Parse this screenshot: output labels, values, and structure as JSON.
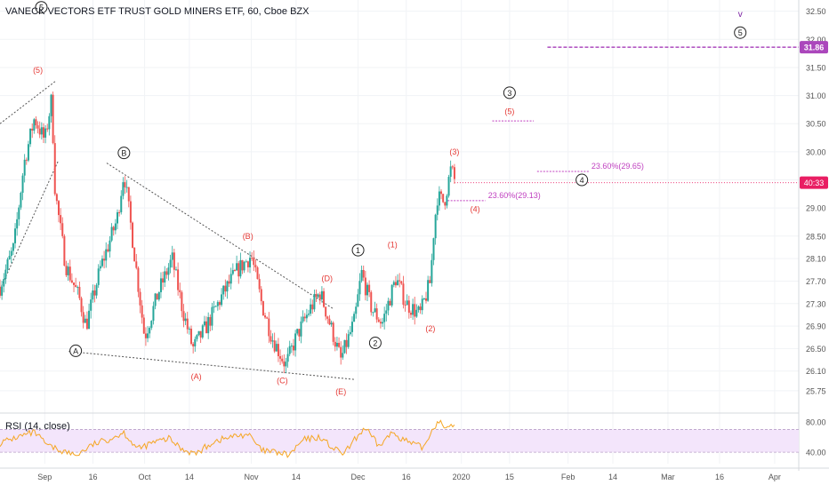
{
  "header": {
    "symbol_title": "VANECK VECTORS ETF TRUST GOLD MINERS ETF, 60, Cboe BZX",
    "rsi_title": "RSI (14, close)"
  },
  "colors": {
    "up_candle": "#26a69a",
    "down_candle": "#ef5350",
    "wave_label_red": "#e53935",
    "fib_magenta": "#c040c0",
    "purple_line": "#9c27b0",
    "price_badge": "#e91e63",
    "last_badge": "#ab47bc",
    "rsi_line": "#f5a623",
    "rsi_band": "#f3e5fb",
    "axis_text": "#555555",
    "grid": "#f1f3f6"
  },
  "chart_data": [
    {
      "type": "candlestick",
      "title": "VANECK VECTORS ETF TRUST GOLD MINERS ETF, 60, Cboe BZX",
      "y_axis_side": "right",
      "ylim": [
        25.4,
        32.7
      ],
      "yticks": [
        25.75,
        26.1,
        26.5,
        26.9,
        27.3,
        27.7,
        28.1,
        28.5,
        29.0,
        29.5,
        30.0,
        30.5,
        31.0,
        31.5,
        32.0,
        32.5
      ],
      "ytick_labels": [
        "25.75",
        "26.10",
        "26.50",
        "26.90",
        "27.30",
        "27.70",
        "28.10",
        "28.50",
        "29.00",
        "29.50",
        "30.00",
        "30.50",
        "31.00",
        "31.50",
        "32.00",
        "32.50"
      ],
      "x_date_range": [
        "2019-08-20",
        "2020-04-08"
      ],
      "x_ticks": [
        {
          "date": "2019-09-02",
          "label": "Sep"
        },
        {
          "date": "2019-09-16",
          "label": "16"
        },
        {
          "date": "2019-10-01",
          "label": "Oct"
        },
        {
          "date": "2019-10-14",
          "label": "14"
        },
        {
          "date": "2019-11-01",
          "label": "Nov"
        },
        {
          "date": "2019-11-14",
          "label": "14"
        },
        {
          "date": "2019-12-02",
          "label": "Dec"
        },
        {
          "date": "2019-12-16",
          "label": "16"
        },
        {
          "date": "2020-01-01",
          "label": "2020"
        },
        {
          "date": "2020-01-15",
          "label": "15"
        },
        {
          "date": "2020-02-01",
          "label": "Feb"
        },
        {
          "date": "2020-02-14",
          "label": "14"
        },
        {
          "date": "2020-03-01",
          "label": "Mar"
        },
        {
          "date": "2020-03-16",
          "label": "16"
        },
        {
          "date": "2020-04-01",
          "label": "Apr"
        }
      ],
      "price_path": [
        {
          "date": "2019-08-20",
          "price": 27.6
        },
        {
          "date": "2019-08-24",
          "price": 28.3
        },
        {
          "date": "2019-08-27",
          "price": 29.8
        },
        {
          "date": "2019-08-30",
          "price": 30.6
        },
        {
          "date": "2019-09-02",
          "price": 30.2
        },
        {
          "date": "2019-09-04",
          "price": 30.95
        },
        {
          "date": "2019-09-05",
          "price": 29.3
        },
        {
          "date": "2019-09-08",
          "price": 28.0
        },
        {
          "date": "2019-09-12",
          "price": 27.4
        },
        {
          "date": "2019-09-14",
          "price": 26.9
        },
        {
          "date": "2019-09-18",
          "price": 27.9
        },
        {
          "date": "2019-09-23",
          "price": 28.8
        },
        {
          "date": "2019-09-25",
          "price": 29.65
        },
        {
          "date": "2019-09-28",
          "price": 28.2
        },
        {
          "date": "2019-10-01",
          "price": 26.7
        },
        {
          "date": "2019-10-05",
          "price": 27.5
        },
        {
          "date": "2019-10-09",
          "price": 28.1
        },
        {
          "date": "2019-10-12",
          "price": 27.2
        },
        {
          "date": "2019-10-15",
          "price": 26.5
        },
        {
          "date": "2019-10-19",
          "price": 26.9
        },
        {
          "date": "2019-10-24",
          "price": 27.5
        },
        {
          "date": "2019-10-28",
          "price": 27.9
        },
        {
          "date": "2019-11-01",
          "price": 28.15
        },
        {
          "date": "2019-11-04",
          "price": 27.3
        },
        {
          "date": "2019-11-07",
          "price": 26.7
        },
        {
          "date": "2019-11-11",
          "price": 26.2
        },
        {
          "date": "2019-11-14",
          "price": 26.7
        },
        {
          "date": "2019-11-18",
          "price": 27.2
        },
        {
          "date": "2019-11-21",
          "price": 27.5
        },
        {
          "date": "2019-11-24",
          "price": 26.9
        },
        {
          "date": "2019-11-27",
          "price": 26.3
        },
        {
          "date": "2019-12-01",
          "price": 27.0
        },
        {
          "date": "2019-12-03",
          "price": 27.85
        },
        {
          "date": "2019-12-06",
          "price": 27.2
        },
        {
          "date": "2019-12-09",
          "price": 26.95
        },
        {
          "date": "2019-12-13",
          "price": 27.75
        },
        {
          "date": "2019-12-16",
          "price": 27.3
        },
        {
          "date": "2019-12-20",
          "price": 27.1
        },
        {
          "date": "2019-12-23",
          "price": 27.7
        },
        {
          "date": "2019-12-24",
          "price": 28.6
        },
        {
          "date": "2019-12-25",
          "price": 29.2
        },
        {
          "date": "2019-12-27",
          "price": 29.1
        },
        {
          "date": "2019-12-29",
          "price": 29.7
        },
        {
          "date": "2019-12-30",
          "price": 29.5
        }
      ],
      "last_price": {
        "value": 29.45,
        "countdown_label": "40:33"
      },
      "level_line": {
        "value": 31.86,
        "label": "31.86",
        "from_date": "2020-01-26"
      },
      "fib_levels": [
        {
          "label": "23.60%(29.13)",
          "value": 29.13,
          "from": "2019-12-28",
          "to": "2020-01-08"
        },
        {
          "label": "23.60%(29.65)",
          "value": 29.65,
          "from": "2020-01-23",
          "to": "2020-02-07"
        },
        {
          "label": "",
          "value": 30.55,
          "from": "2020-01-10",
          "to": "2020-01-22"
        }
      ],
      "trendlines": [
        {
          "from": {
            "date": "2019-08-20",
            "price": 30.5
          },
          "to": {
            "date": "2019-09-05",
            "price": 31.25
          }
        },
        {
          "from": {
            "date": "2019-08-20",
            "price": 27.55
          },
          "to": {
            "date": "2019-09-06",
            "price": 29.85
          }
        },
        {
          "from": {
            "date": "2019-09-20",
            "price": 29.8
          },
          "to": {
            "date": "2019-11-25",
            "price": 27.2
          }
        },
        {
          "from": {
            "date": "2019-09-09",
            "price": 26.45
          },
          "to": {
            "date": "2019-12-01",
            "price": 25.95
          }
        }
      ],
      "wave_labels": [
        {
          "text": "(5)",
          "date": "2019-08-31",
          "price": 31.45,
          "style": "red"
        },
        {
          "text": "5",
          "date": "2019-09-01",
          "price": 32.57,
          "style": "circle"
        },
        {
          "text": "B",
          "date": "2019-09-25",
          "price": 29.98,
          "style": "circle"
        },
        {
          "text": "A",
          "date": "2019-09-11",
          "price": 26.46,
          "style": "circle"
        },
        {
          "text": "(A)",
          "date": "2019-10-16",
          "price": 26.0,
          "style": "red"
        },
        {
          "text": "(B)",
          "date": "2019-10-31",
          "price": 28.5,
          "style": "red"
        },
        {
          "text": "(C)",
          "date": "2019-11-10",
          "price": 25.93,
          "style": "red"
        },
        {
          "text": "(D)",
          "date": "2019-11-23",
          "price": 27.75,
          "style": "red"
        },
        {
          "text": "(E)",
          "date": "2019-11-27",
          "price": 25.73,
          "style": "red"
        },
        {
          "text": "1",
          "date": "2019-12-02",
          "price": 28.25,
          "style": "circle"
        },
        {
          "text": "(1)",
          "date": "2019-12-12",
          "price": 28.35,
          "style": "red"
        },
        {
          "text": "2",
          "date": "2019-12-07",
          "price": 26.6,
          "style": "circle"
        },
        {
          "text": "(2)",
          "date": "2019-12-23",
          "price": 26.85,
          "style": "red"
        },
        {
          "text": "(3)",
          "date": "2019-12-30",
          "price": 30.0,
          "style": "red"
        },
        {
          "text": "(4)",
          "date": "2020-01-05",
          "price": 28.98,
          "style": "red"
        },
        {
          "text": "3",
          "date": "2020-01-15",
          "price": 31.05,
          "style": "circle"
        },
        {
          "text": "(5)",
          "date": "2020-01-15",
          "price": 30.72,
          "style": "red"
        },
        {
          "text": "4",
          "date": "2020-02-05",
          "price": 29.5,
          "style": "circle"
        },
        {
          "text": "5",
          "date": "2020-03-22",
          "price": 32.12,
          "style": "circle"
        },
        {
          "text": "v",
          "date": "2020-03-22",
          "price": 32.45,
          "style": "purple"
        }
      ]
    },
    {
      "type": "line",
      "title": "RSI (14, close)",
      "ylim": [
        25,
        88
      ],
      "yticks": [
        40.0,
        80.0
      ],
      "ytick_labels": [
        "40.00",
        "80.00"
      ],
      "band": [
        40,
        70
      ],
      "series": [
        {
          "name": "RSI (14, close)",
          "points": [
            {
              "date": "2019-08-20",
              "value": 52
            },
            {
              "date": "2019-08-25",
              "value": 60
            },
            {
              "date": "2019-08-30",
              "value": 66
            },
            {
              "date": "2019-09-03",
              "value": 48
            },
            {
              "date": "2019-09-07",
              "value": 42
            },
            {
              "date": "2019-09-11",
              "value": 36
            },
            {
              "date": "2019-09-16",
              "value": 50
            },
            {
              "date": "2019-09-21",
              "value": 58
            },
            {
              "date": "2019-09-25",
              "value": 66
            },
            {
              "date": "2019-09-29",
              "value": 44
            },
            {
              "date": "2019-10-03",
              "value": 52
            },
            {
              "date": "2019-10-08",
              "value": 58
            },
            {
              "date": "2019-10-12",
              "value": 44
            },
            {
              "date": "2019-10-16",
              "value": 38
            },
            {
              "date": "2019-10-21",
              "value": 54
            },
            {
              "date": "2019-10-26",
              "value": 60
            },
            {
              "date": "2019-10-31",
              "value": 64
            },
            {
              "date": "2019-11-04",
              "value": 42
            },
            {
              "date": "2019-11-08",
              "value": 40
            },
            {
              "date": "2019-11-12",
              "value": 36
            },
            {
              "date": "2019-11-16",
              "value": 56
            },
            {
              "date": "2019-11-21",
              "value": 60
            },
            {
              "date": "2019-11-25",
              "value": 44
            },
            {
              "date": "2019-11-28",
              "value": 38
            },
            {
              "date": "2019-12-02",
              "value": 62
            },
            {
              "date": "2019-12-04",
              "value": 72
            },
            {
              "date": "2019-12-08",
              "value": 48
            },
            {
              "date": "2019-12-12",
              "value": 66
            },
            {
              "date": "2019-12-17",
              "value": 52
            },
            {
              "date": "2019-12-21",
              "value": 46
            },
            {
              "date": "2019-12-24",
              "value": 74
            },
            {
              "date": "2019-12-26",
              "value": 82
            },
            {
              "date": "2019-12-28",
              "value": 70
            },
            {
              "date": "2019-12-30",
              "value": 76
            }
          ]
        }
      ]
    }
  ]
}
